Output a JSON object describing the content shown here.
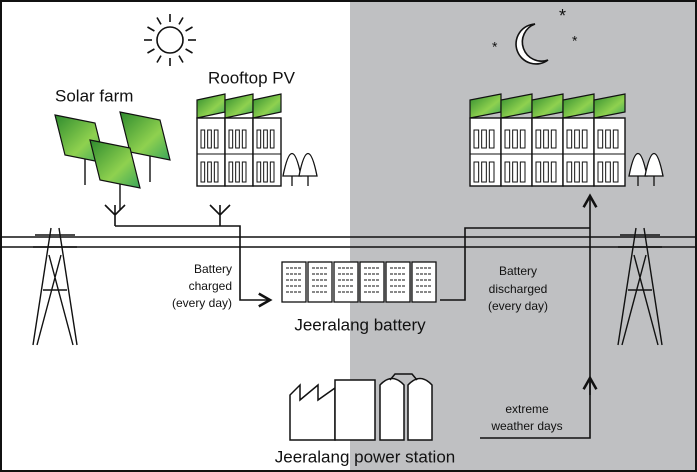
{
  "labels": {
    "solar_farm": "Solar farm",
    "rooftop_pv": "Rooftop PV",
    "battery_charged": [
      "Battery",
      "charged",
      "(every day)"
    ],
    "battery": "Jeeralang battery",
    "battery_discharged": [
      "Battery",
      "discharged",
      "(every day)"
    ],
    "extreme_weather": [
      "extreme",
      "weather days"
    ],
    "power_station": "Jeeralang power station"
  }
}
